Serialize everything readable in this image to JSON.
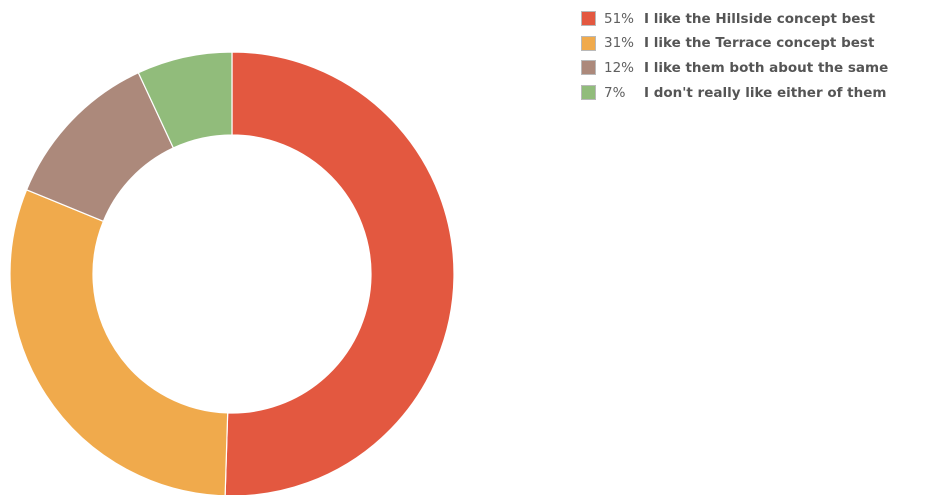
{
  "chart_data": {
    "type": "pie",
    "variant": "donut",
    "legend_position": "top-right",
    "slices": [
      {
        "percent_label": "51%",
        "label": "I like the Hillside concept best",
        "value": 51,
        "color": "#e35840"
      },
      {
        "percent_label": "31%",
        "label": "I like the Terrace concept best",
        "value": 31,
        "color": "#f0aa4c"
      },
      {
        "percent_label": "12%",
        "label": "I like them both about the same",
        "value": 12,
        "color": "#ac897b"
      },
      {
        "percent_label": "7%",
        "label": "I don't really like either of them",
        "value": 7,
        "color": "#91bc7b"
      }
    ]
  }
}
